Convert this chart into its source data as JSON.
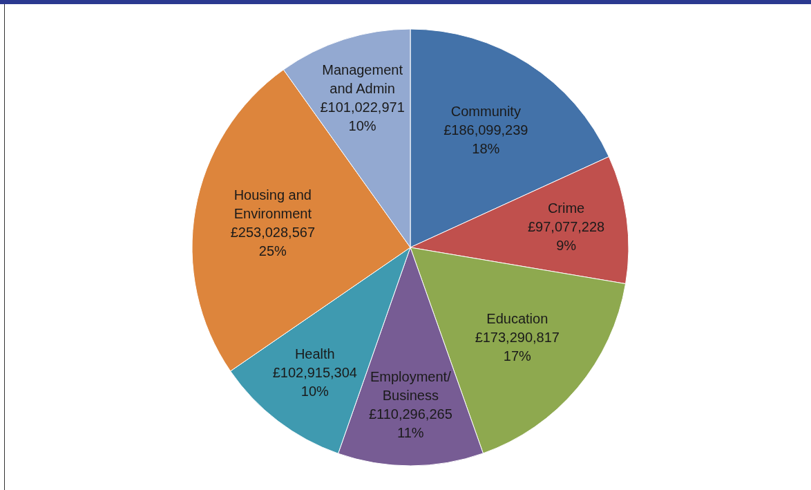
{
  "chart_data": {
    "type": "pie",
    "categories": [
      "Community",
      "Crime",
      "Education",
      "Employment/Business",
      "Health",
      "Housing and Environment",
      "Management and Admin"
    ],
    "values": [
      186099239,
      97077228,
      173290817,
      110296265,
      102915304,
      253028567,
      101022971
    ],
    "colors": [
      "#4372a9",
      "#c0504d",
      "#8ea94f",
      "#775c94",
      "#3f9ab0",
      "#dd853c",
      "#93a9d1"
    ],
    "value_labels": [
      "£186,099,239\n18%",
      "£97,077,228\n9%",
      "£173,290,817\n17%",
      "£110,296,265\n11%",
      "£102,915,304\n10%",
      "£253,028,567\n25%",
      "£101,022,971\n10%"
    ]
  }
}
